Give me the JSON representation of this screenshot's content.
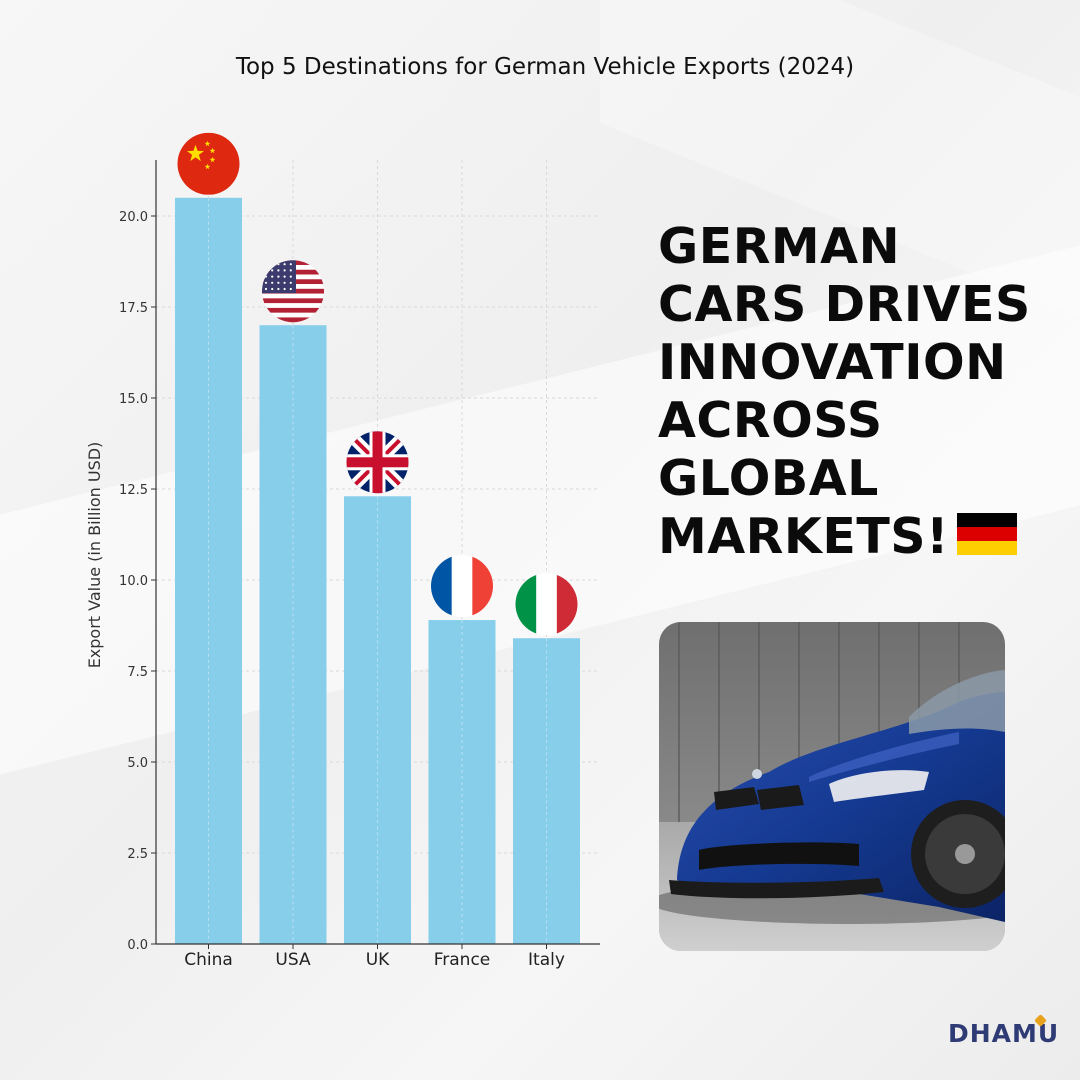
{
  "chart_data": {
    "type": "bar",
    "title": "Top 5 Destinations for German Vehicle Exports (2024)",
    "ylabel": "Export Value (in Billion USD)",
    "xlabel": "",
    "categories": [
      "China",
      "USA",
      "UK",
      "France",
      "Italy"
    ],
    "values": [
      20.5,
      17.0,
      12.3,
      8.9,
      8.4
    ],
    "ylim": [
      0,
      21.5
    ],
    "yticks": [
      "0.0",
      "2.5",
      "5.0",
      "7.5",
      "10.0",
      "12.5",
      "15.0",
      "17.5",
      "20.0"
    ],
    "ytick_values": [
      0,
      2.5,
      5,
      7.5,
      10,
      12.5,
      15,
      17.5,
      20
    ],
    "bar_color": "#87ceeb",
    "grid": true,
    "legend": "none",
    "bar_icons": [
      "china-flag-icon",
      "usa-flag-icon",
      "uk-flag-icon",
      "france-flag-icon",
      "italy-flag-icon"
    ]
  },
  "headline": {
    "lines": [
      "GERMAN",
      "CARS DRIVES",
      "INNOVATION",
      "ACROSS",
      "GLOBAL",
      "MARKETS!"
    ],
    "flag_icon": "germany-flag-icon"
  },
  "photo": {
    "icon": "blue-sports-car-photo"
  },
  "brand": {
    "name": "DHAMU",
    "accent": "#e8a21c",
    "color": "#2f3b75"
  }
}
